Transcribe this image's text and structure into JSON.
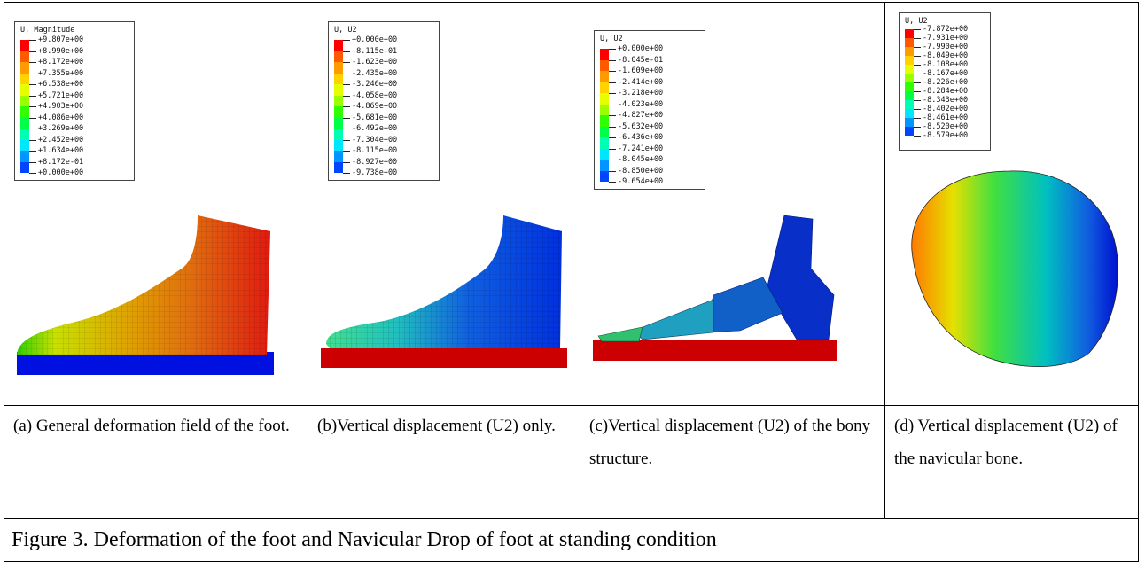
{
  "panels": [
    {
      "legend": {
        "title": "U, Magnitude",
        "values": [
          "+9.807e+00",
          "+8.990e+00",
          "+8.172e+00",
          "+7.355e+00",
          "+6.538e+00",
          "+5.721e+00",
          "+4.903e+00",
          "+4.086e+00",
          "+3.269e+00",
          "+2.452e+00",
          "+1.634e+00",
          "+8.172e-01",
          "+0.000e+00"
        ]
      },
      "caption": "(a) General deformation field of the foot."
    },
    {
      "legend": {
        "title": "U, U2",
        "values": [
          "+0.000e+00",
          "-8.115e-01",
          "-1.623e+00",
          "-2.435e+00",
          "-3.246e+00",
          "-4.058e+00",
          "-4.869e+00",
          "-5.681e+00",
          "-6.492e+00",
          "-7.304e+00",
          "-8.115e+00",
          "-8.927e+00",
          "-9.738e+00"
        ]
      },
      "caption": "(b)Vertical displacement (U2) only."
    },
    {
      "legend": {
        "title": "U, U2",
        "values": [
          "+0.000e+00",
          "-8.045e-01",
          "-1.609e+00",
          "-2.414e+00",
          "-3.218e+00",
          "-4.023e+00",
          "-4.827e+00",
          "-5.632e+00",
          "-6.436e+00",
          "-7.241e+00",
          "-8.045e+00",
          "-8.850e+00",
          "-9.654e+00"
        ]
      },
      "caption": "(c)Vertical displacement (U2) of the bony structure."
    },
    {
      "legend": {
        "title": "U, U2",
        "values": [
          "-7.872e+00",
          "-7.931e+00",
          "-7.990e+00",
          "-8.049e+00",
          "-8.108e+00",
          "-8.167e+00",
          "-8.226e+00",
          "-8.284e+00",
          "-8.343e+00",
          "-8.402e+00",
          "-8.461e+00",
          "-8.520e+00",
          "-8.579e+00"
        ]
      },
      "caption": "(d) Vertical displacement (U2) of the navicular bone."
    }
  ],
  "figure_caption": "Figure 3. Deformation of the foot and Navicular Drop of foot at standing condition",
  "colors": {
    "contour": [
      "#ff0000",
      "#ff5a00",
      "#ff9a00",
      "#ffd200",
      "#e6ff00",
      "#9cff00",
      "#2fff00",
      "#00ff46",
      "#00ffb4",
      "#00e6ff",
      "#0096ff",
      "#0046ff",
      "#0000ff"
    ],
    "floor_blue": "#0010e0",
    "floor_red": "#cc0000"
  }
}
